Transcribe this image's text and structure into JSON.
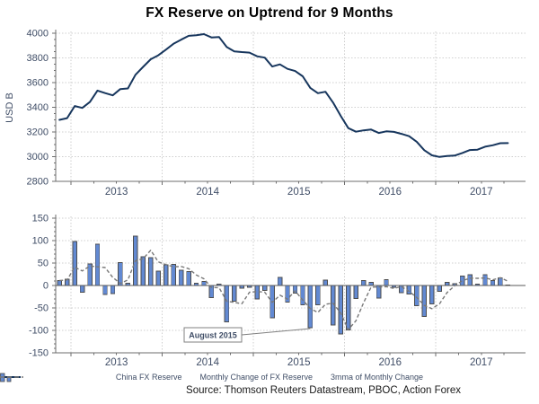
{
  "title": "FX Reserve on Uptrend for 9 Months",
  "source": "Source: Thomson Reuters Datastream, PBOC, Action Forex",
  "legend": [
    {
      "label": "China FX Reserve",
      "type": "line",
      "color": "#17365d"
    },
    {
      "label": "Monthly Change of FX Reserve",
      "type": "bar",
      "color": "#6289d2"
    },
    {
      "label": "3mma of Monthly Change",
      "type": "dashed-line",
      "color": "#787878"
    }
  ],
  "colors": {
    "line": "#17365d",
    "bar_fill": "#6289d2",
    "bar_border": "#4d4d4d",
    "mma": "#787878",
    "grid": "#cfcfcf",
    "axis": "#6e6e6e",
    "zero_line": "#595959",
    "tick_text": "#3f4d66",
    "annotation_border": "#808080"
  },
  "chart_data": [
    {
      "type": "line",
      "title": "",
      "ylabel": "USD B",
      "ylim": [
        2800,
        4000
      ],
      "yticks": [
        2800,
        3000,
        3200,
        3400,
        3600,
        3800,
        4000
      ],
      "x_start": "2012-11",
      "x_frequency": "monthly",
      "x_year_labels": [
        "2013",
        "2014",
        "2015",
        "2016",
        "2017"
      ],
      "grid": true,
      "series": [
        {
          "name": "China FX Reserve",
          "values": [
            3298,
            3312,
            3410,
            3395,
            3443,
            3535,
            3515,
            3497,
            3548,
            3553,
            3663,
            3727,
            3789,
            3821,
            3867,
            3914,
            3948,
            3979,
            3984,
            3993,
            3966,
            3969,
            3888,
            3853,
            3847,
            3843,
            3813,
            3802,
            3730,
            3748,
            3711,
            3694,
            3651,
            3557,
            3514,
            3526,
            3438,
            3330,
            3231,
            3202,
            3213,
            3220,
            3192,
            3205,
            3201,
            3185,
            3166,
            3121,
            3052,
            3011,
            2998,
            3005,
            3009,
            3030,
            3054,
            3057,
            3081,
            3092,
            3109,
            3110
          ]
        }
      ]
    },
    {
      "type": "bar",
      "ylim": [
        -150,
        150
      ],
      "yticks": [
        -150,
        -100,
        -50,
        0,
        50,
        100,
        150
      ],
      "x_start": "2012-11",
      "x_frequency": "monthly",
      "x_year_labels": [
        "2013",
        "2014",
        "2015",
        "2016",
        "2017"
      ],
      "grid": true,
      "series": [
        {
          "name": "Monthly Change of FX Reserve",
          "type": "bar",
          "values": [
            11,
            14,
            98,
            -15,
            48,
            92,
            -20,
            -18,
            51,
            5,
            110,
            64,
            62,
            32,
            46,
            47,
            34,
            31,
            5,
            9,
            -27,
            3,
            -81,
            -35,
            -6,
            -4,
            -30,
            -11,
            -72,
            18,
            -37,
            -17,
            -43,
            -94,
            -43,
            12,
            -88,
            -108,
            -99,
            -29,
            11,
            7,
            -28,
            13,
            -4,
            -16,
            -19,
            -45,
            -69,
            -41,
            -13,
            7,
            4,
            21,
            24,
            3,
            24,
            11,
            17,
            1
          ]
        },
        {
          "name": "3mma of Monthly Change",
          "type": "dashed-line",
          "derived_from": "3-month moving average of Monthly Change of FX Reserve"
        }
      ],
      "annotation": {
        "text": "August 2015",
        "points_to_month": "2015-08",
        "points_to_value": -94
      }
    }
  ]
}
